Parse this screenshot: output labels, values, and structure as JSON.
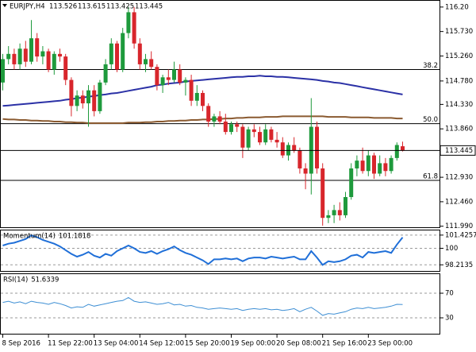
{
  "chart_data": [
    {
      "type": "candlestick",
      "title": "EURJPY,H4",
      "categories": [
        "8 Sep 2016",
        null,
        null,
        null,
        null,
        null,
        null,
        null,
        "11 Sep 22:00",
        null,
        null,
        null,
        null,
        null,
        null,
        null,
        "13 Sep 04:00",
        null,
        null,
        null,
        null,
        null,
        null,
        null,
        "14 Sep 12:00",
        null,
        null,
        null,
        null,
        null,
        null,
        null,
        "15 Sep 20:00",
        null,
        null,
        null,
        null,
        null,
        null,
        null,
        "19 Sep 00:00",
        null,
        null,
        null,
        null,
        null,
        null,
        null,
        "20 Sep 08:00",
        null,
        null,
        null,
        null,
        null,
        null,
        null,
        "21 Sep 16:00",
        null,
        null,
        null,
        null,
        null,
        null,
        null,
        "23 Sep 00:00",
        null,
        null,
        null,
        null,
        null,
        null
      ],
      "open": [
        114.75,
        115.2,
        115.3,
        115.1,
        115.4,
        115.15,
        115.6,
        115.25,
        115.35,
        115.0,
        115.3,
        115.25,
        114.8,
        114.3,
        114.5,
        114.35,
        114.6,
        114.2,
        114.75,
        115.1,
        115.5,
        115.0,
        115.7,
        116.1,
        115.5,
        115.1,
        115.2,
        115.05,
        114.7,
        114.85,
        114.8,
        115.0,
        114.75,
        114.8,
        114.4,
        114.55,
        114.3,
        114.0,
        114.1,
        114.0,
        113.8,
        113.95,
        113.9,
        113.5,
        113.85,
        113.8,
        113.6,
        113.85,
        113.65,
        113.6,
        113.35,
        113.55,
        113.45,
        113.1,
        113.0,
        113.9,
        113.1,
        112.15,
        112.2,
        112.3,
        112.2,
        112.55,
        113.1,
        113.25,
        113.05,
        113.35,
        113.0,
        113.2,
        113.05,
        113.3,
        113.526
      ],
      "high": [
        115.3,
        115.45,
        115.4,
        115.5,
        115.55,
        115.95,
        115.7,
        115.45,
        115.4,
        115.35,
        115.4,
        115.3,
        114.85,
        114.6,
        114.6,
        114.7,
        114.7,
        114.8,
        115.2,
        115.6,
        115.55,
        115.8,
        116.2,
        116.2,
        115.6,
        115.3,
        115.35,
        115.1,
        114.9,
        115.0,
        115.15,
        115.1,
        114.85,
        114.9,
        114.7,
        114.6,
        114.35,
        114.15,
        114.2,
        114.15,
        114.0,
        114.0,
        113.95,
        113.9,
        113.95,
        113.9,
        113.95,
        113.9,
        113.8,
        113.7,
        113.6,
        113.7,
        113.5,
        113.2,
        114.45,
        114.0,
        113.2,
        112.3,
        112.4,
        112.45,
        112.65,
        113.2,
        113.35,
        113.5,
        113.45,
        113.4,
        113.35,
        113.3,
        113.35,
        113.6,
        113.615
      ],
      "low": [
        114.6,
        115.1,
        115.0,
        115.0,
        115.05,
        115.1,
        115.15,
        115.1,
        114.95,
        114.9,
        115.15,
        114.7,
        114.1,
        114.2,
        114.25,
        113.9,
        114.1,
        114.15,
        114.7,
        115.0,
        114.95,
        114.95,
        115.6,
        115.4,
        115.0,
        114.95,
        115.0,
        114.6,
        114.55,
        114.7,
        114.75,
        114.7,
        114.5,
        114.3,
        114.3,
        114.2,
        113.9,
        113.9,
        113.95,
        113.75,
        113.75,
        113.8,
        113.3,
        113.45,
        113.7,
        113.55,
        113.55,
        113.6,
        113.5,
        113.3,
        113.25,
        113.4,
        113.0,
        112.7,
        112.6,
        113.0,
        112.0,
        112.05,
        112.05,
        112.1,
        112.15,
        112.5,
        112.95,
        113.0,
        112.95,
        112.9,
        112.95,
        112.95,
        113.0,
        113.25,
        113.425
      ],
      "close": [
        115.2,
        115.3,
        115.1,
        115.4,
        115.15,
        115.6,
        115.25,
        115.35,
        115.0,
        115.3,
        115.25,
        114.8,
        114.3,
        114.5,
        114.35,
        114.6,
        114.2,
        114.75,
        115.1,
        115.5,
        115.0,
        115.7,
        116.1,
        115.5,
        115.1,
        115.2,
        115.05,
        114.7,
        114.85,
        114.8,
        115.0,
        114.75,
        114.8,
        114.4,
        114.55,
        114.3,
        114.0,
        114.1,
        114.0,
        113.8,
        113.95,
        113.9,
        113.5,
        113.85,
        113.8,
        113.6,
        113.85,
        113.65,
        113.6,
        113.35,
        113.55,
        113.45,
        113.1,
        113.0,
        113.9,
        113.1,
        112.15,
        112.2,
        112.3,
        112.2,
        112.55,
        113.1,
        113.25,
        113.05,
        113.35,
        113.0,
        113.2,
        113.05,
        113.3,
        113.55,
        113.445
      ],
      "up_color": "#1e9a3c",
      "down_color": "#d8262c",
      "series": [
        {
          "color": "#2b31a6",
          "values": [
            114.3,
            114.31,
            114.32,
            114.33,
            114.34,
            114.35,
            114.36,
            114.37,
            114.38,
            114.39,
            114.4,
            114.42,
            114.43,
            114.45,
            114.46,
            114.48,
            114.49,
            114.51,
            114.52,
            114.54,
            114.55,
            114.57,
            114.59,
            114.61,
            114.63,
            114.65,
            114.67,
            114.7,
            114.71,
            114.73,
            114.74,
            114.75,
            114.77,
            114.78,
            114.79,
            114.8,
            114.81,
            114.82,
            114.83,
            114.84,
            114.85,
            114.86,
            114.86,
            114.87,
            114.87,
            114.88,
            114.87,
            114.87,
            114.86,
            114.86,
            114.85,
            114.84,
            114.83,
            114.82,
            114.81,
            114.8,
            114.78,
            114.77,
            114.75,
            114.74,
            114.72,
            114.7,
            114.68,
            114.66,
            114.64,
            114.62,
            114.6,
            114.58,
            114.56,
            114.54,
            114.52
          ]
        },
        {
          "color": "#8a5a30",
          "values": [
            114.05,
            114.04,
            114.04,
            114.03,
            114.03,
            114.02,
            114.02,
            114.01,
            114.01,
            114.0,
            114.0,
            113.99,
            113.99,
            113.98,
            113.98,
            113.97,
            113.97,
            113.97,
            113.97,
            113.97,
            113.97,
            113.97,
            113.98,
            113.98,
            113.98,
            113.99,
            113.99,
            114.0,
            114.0,
            114.01,
            114.01,
            114.02,
            114.02,
            114.03,
            114.03,
            114.04,
            114.04,
            114.05,
            114.05,
            114.06,
            114.06,
            114.07,
            114.07,
            114.08,
            114.08,
            114.08,
            114.09,
            114.09,
            114.09,
            114.1,
            114.1,
            114.1,
            114.1,
            114.1,
            114.1,
            114.1,
            114.1,
            114.09,
            114.09,
            114.09,
            114.09,
            114.08,
            114.08,
            114.08,
            114.08,
            114.07,
            114.07,
            114.07,
            114.07,
            114.06,
            114.06
          ]
        }
      ],
      "levels": [
        {
          "label": "38.2",
          "value": 115.0
        },
        {
          "label": "50.0",
          "value": 113.96
        },
        {
          "label": "61.8",
          "value": 112.87
        }
      ],
      "ylim": [
        111.97,
        116.32
      ],
      "yticks": [
        {
          "value": 116.2,
          "label": "116.20"
        },
        {
          "value": 115.73,
          "label": "115.730"
        },
        {
          "value": 115.26,
          "label": "115.260"
        },
        {
          "value": 114.78,
          "label": "114.780"
        },
        {
          "value": 114.33,
          "label": "114.330"
        },
        {
          "value": 113.86,
          "label": "113.860"
        },
        {
          "value": 112.93,
          "label": "112.930"
        },
        {
          "value": 112.46,
          "label": "112.460"
        },
        {
          "value": 111.99,
          "label": "111.990"
        }
      ]
    },
    {
      "type": "line",
      "title": "Momentum(14)",
      "color": "#1f6fd8",
      "values": [
        100.3,
        100.5,
        100.6,
        100.8,
        101.0,
        101.4,
        101.2,
        100.9,
        100.7,
        100.5,
        100.2,
        99.8,
        99.4,
        99.1,
        99.3,
        99.6,
        99.2,
        99.0,
        99.4,
        99.2,
        99.7,
        100.0,
        100.3,
        100.0,
        99.6,
        99.5,
        99.7,
        99.4,
        99.7,
        99.9,
        100.2,
        99.8,
        99.5,
        99.3,
        99.0,
        98.7,
        98.3,
        98.8,
        98.8,
        98.9,
        98.8,
        98.9,
        98.6,
        98.9,
        99.0,
        99.0,
        98.9,
        99.1,
        99.0,
        98.9,
        99.0,
        99.1,
        98.8,
        98.8,
        99.7,
        99.0,
        98.2,
        98.6,
        98.5,
        98.6,
        98.8,
        99.2,
        99.3,
        99.0,
        99.6,
        99.5,
        99.6,
        99.7,
        99.5,
        100.4,
        101.1818
      ],
      "ylim": [
        97.55,
        101.93
      ],
      "yticks": [
        101.4257,
        100,
        98.2135
      ]
    },
    {
      "type": "line",
      "title": "RSI(14)",
      "color": "#3e8fd4",
      "values": [
        55,
        57,
        54,
        56,
        53,
        57,
        55,
        54,
        52,
        55,
        53,
        50,
        46,
        48,
        47,
        52,
        49,
        51,
        53,
        55,
        57,
        58,
        63,
        57,
        55,
        56,
        54,
        52,
        53,
        55,
        51,
        52,
        49,
        50,
        47,
        46,
        44,
        45,
        46,
        45,
        44,
        45,
        42,
        44,
        45,
        44,
        45,
        43,
        44,
        42,
        43,
        45,
        40,
        44,
        47,
        41,
        34,
        37,
        36,
        38,
        40,
        44,
        46,
        45,
        47,
        45,
        46,
        47,
        49,
        52,
        51.6339
      ],
      "ylim": [
        4.2,
        101
      ],
      "yticks": [
        70,
        30
      ]
    }
  ]
}
